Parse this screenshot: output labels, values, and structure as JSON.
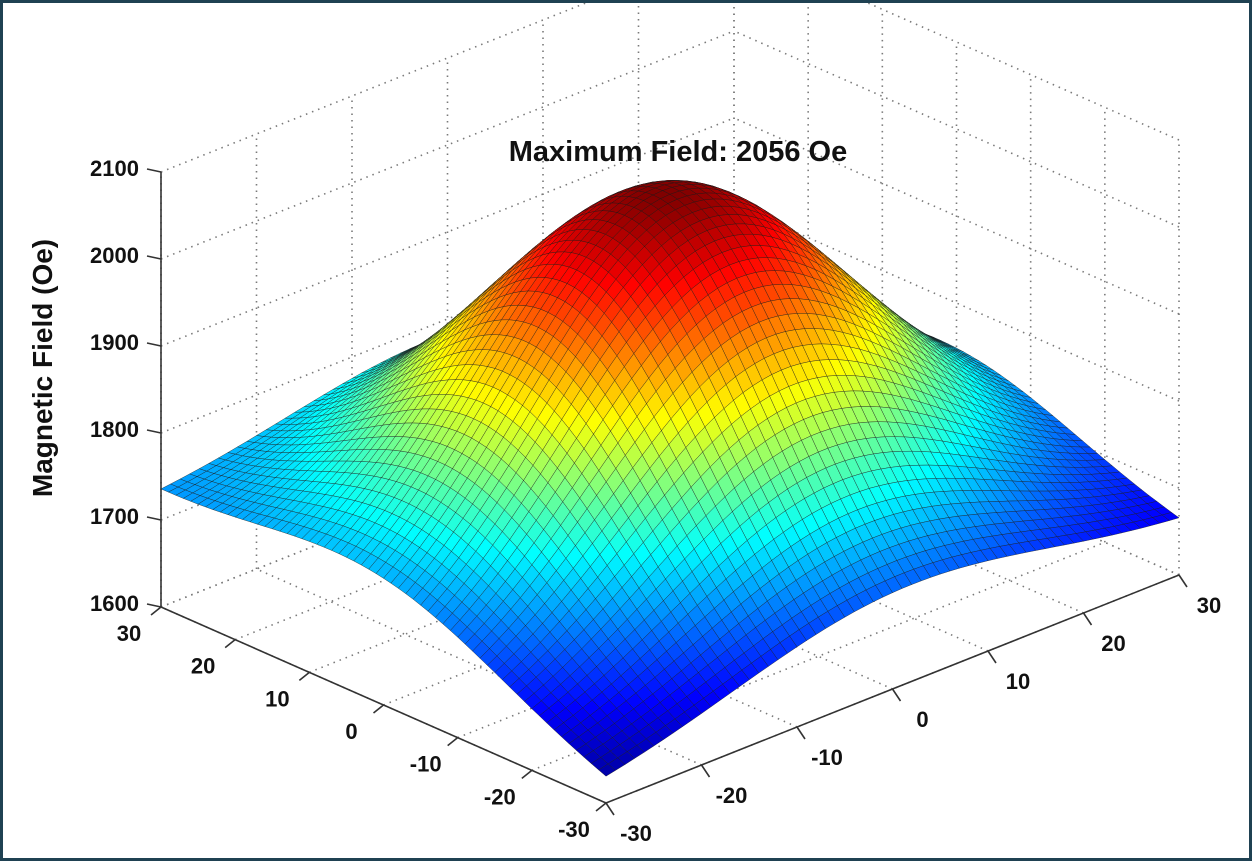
{
  "chart_data": {
    "type": "surface",
    "title": "Maximum Field: 2056 Oe",
    "zlabel": "Magnetic Field (Oe)",
    "xlabel": "",
    "ylabel": "",
    "x_ticks": [
      "-30",
      "-20",
      "-10",
      "0",
      "10",
      "20",
      "30"
    ],
    "y_ticks": [
      "-30",
      "-20",
      "-10",
      "0",
      "10",
      "20",
      "30"
    ],
    "z_ticks": [
      "1600",
      "1700",
      "1800",
      "1900",
      "2000",
      "2100"
    ],
    "xlim": [
      -30,
      30
    ],
    "ylim": [
      -30,
      30
    ],
    "zlim": [
      1600,
      2100
    ],
    "grid": true,
    "colormap": "jet",
    "surface": {
      "max_value": 2056,
      "center_x": 0,
      "center_y": 0,
      "corner_values": {
        "x_-30_y_-30": 1615,
        "x_30_y_-30": 1650,
        "x_-30_y_30": 1720,
        "x_30_y_30": 1690
      }
    },
    "colors": {
      "frame_border": "#1f4152",
      "mesh_line": "#1a1a1a",
      "grid": "#7a7a7a"
    }
  }
}
